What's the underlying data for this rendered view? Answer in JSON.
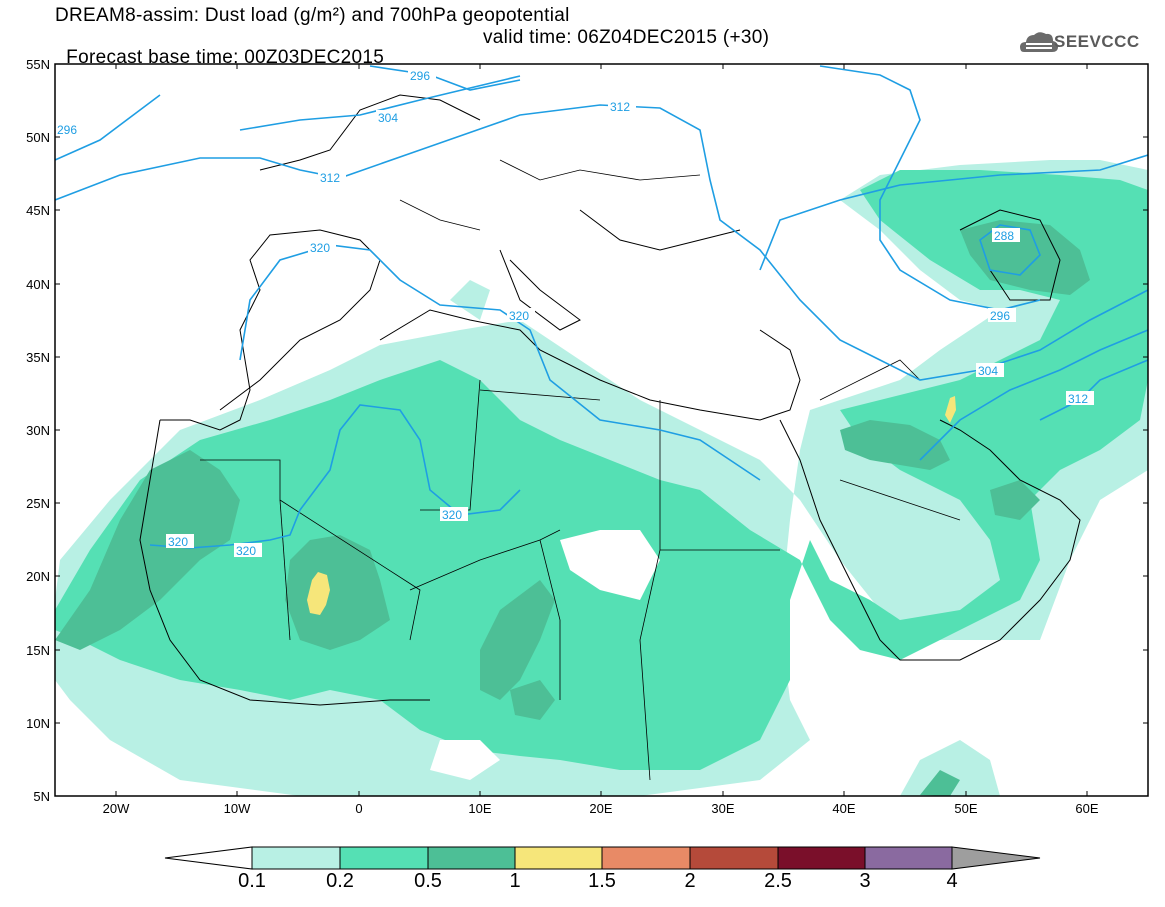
{
  "title": {
    "line1": "DREAM8-assim: Dust load (g/m²) and 700hPa geopotential",
    "line2_left": "Forecast base time: 00Z03DEC2015",
    "line2_right": "valid time: 06Z04DEC2015 (+30)"
  },
  "logo": {
    "text": "SEEVCCC",
    "icon": "cloud-icon"
  },
  "axes": {
    "lat_labels": [
      "55N",
      "50N",
      "45N",
      "40N",
      "35N",
      "30N",
      "25N",
      "20N",
      "15N",
      "10N",
      "5N"
    ],
    "lon_labels": [
      "20W",
      "10W",
      "0",
      "10E",
      "20E",
      "30E",
      "40E",
      "50E",
      "60E"
    ]
  },
  "colorbar": {
    "labels": [
      "0.1",
      "0.2",
      "0.5",
      "1",
      "1.5",
      "2",
      "2.5",
      "3",
      "4"
    ],
    "colors": [
      "#ffffff",
      "#b8f0e4",
      "#55e0b4",
      "#4dbf96",
      "#f6e67a",
      "#e88a66",
      "#b54a3a",
      "#7a0f2a",
      "#8a6aa0",
      "#9e9e9e"
    ]
  },
  "contours": [
    {
      "label": "296"
    },
    {
      "label": "304"
    },
    {
      "label": "312"
    },
    {
      "label": "320"
    },
    {
      "label": "288"
    }
  ],
  "chart_data": {
    "type": "heatmap",
    "variable": "Dust load (g/m²)",
    "overlay": "700hPa geopotential contours",
    "lon_range": [
      -25,
      65
    ],
    "lat_range": [
      5,
      55
    ],
    "levels": [
      0.1,
      0.2,
      0.5,
      1,
      1.5,
      2,
      2.5,
      3,
      4
    ],
    "contour_values": [
      288,
      296,
      304,
      312,
      320
    ]
  }
}
